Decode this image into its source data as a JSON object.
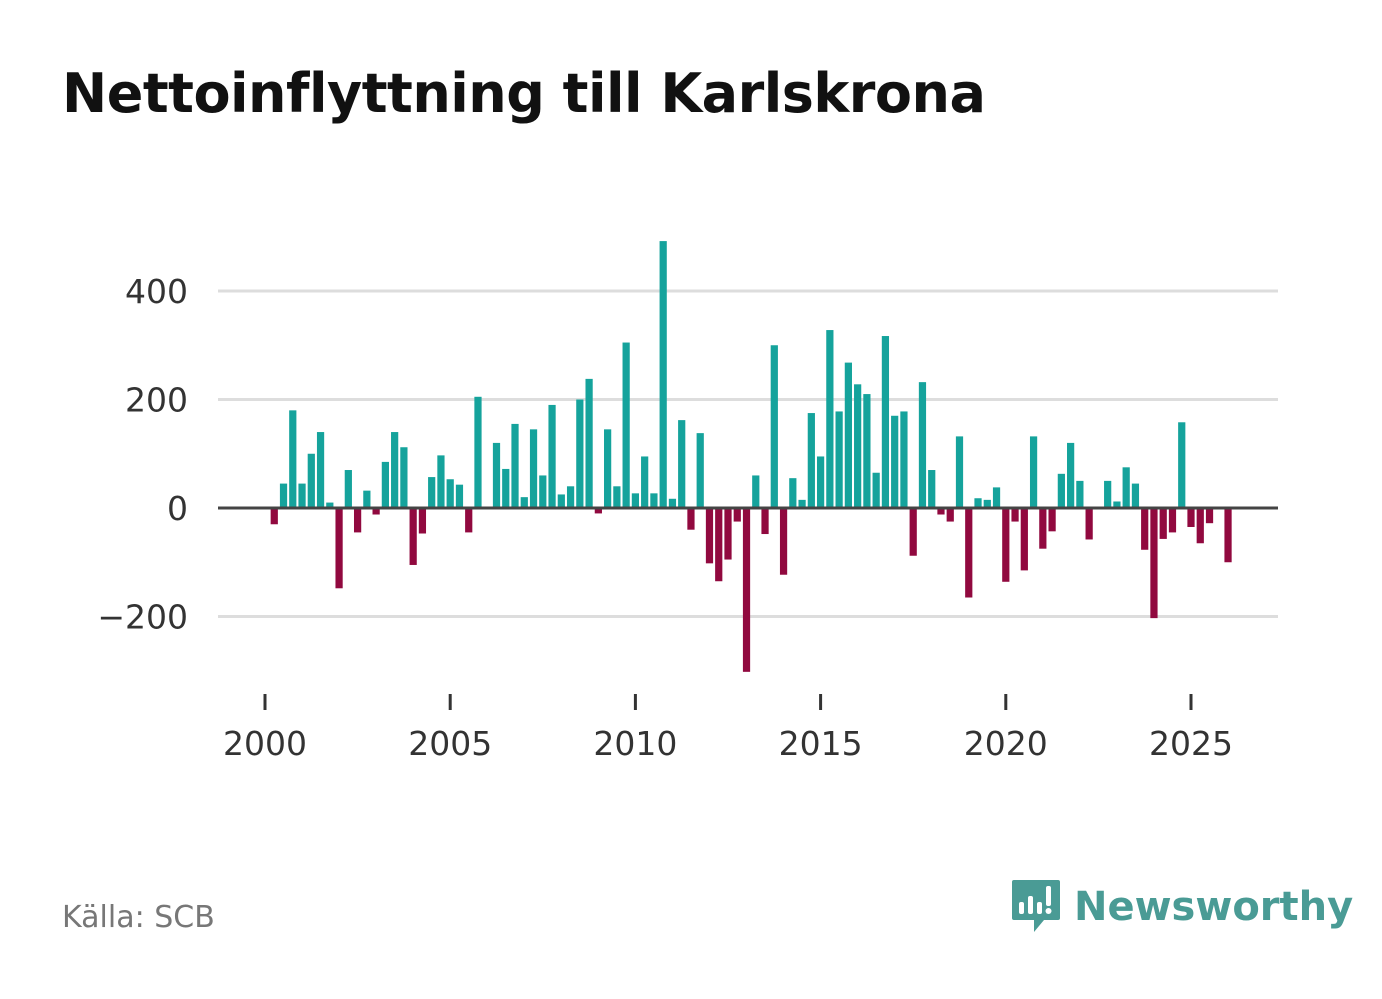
{
  "chart_data": {
    "type": "bar",
    "title": "Nettoinflyttning till Karlskrona",
    "xlabel": "",
    "ylabel": "",
    "ylim": [
      -330,
      520
    ],
    "xlim": [
      1999.5,
      2027.5
    ],
    "yticks": [
      -200,
      0,
      200,
      400
    ],
    "ytick_labels": [
      "−200",
      "0",
      "200",
      "400"
    ],
    "xticks": [
      2000,
      2005,
      2010,
      2015,
      2020,
      2025
    ],
    "xtick_labels": [
      "2000",
      "2005",
      "2010",
      "2015",
      "2020",
      "2025"
    ],
    "colors": {
      "positive": "#15a39c",
      "negative": "#91093f",
      "grid": "#dddddd",
      "zero": "#444444"
    },
    "start": 2000,
    "step": 0.25,
    "values": [
      0,
      -30,
      45,
      180,
      45,
      100,
      140,
      10,
      -148,
      70,
      -45,
      32,
      -12,
      85,
      140,
      112,
      -105,
      -47,
      57,
      97,
      53,
      43,
      -45,
      205,
      0,
      120,
      72,
      155,
      20,
      145,
      60,
      190,
      25,
      40,
      200,
      238,
      -10,
      145,
      40,
      305,
      27,
      95,
      27,
      492,
      17,
      162,
      -40,
      138,
      -102,
      -135,
      -95,
      -25,
      -302,
      60,
      -48,
      300,
      -123,
      55,
      15,
      175,
      95,
      328,
      178,
      268,
      228,
      210,
      65,
      317,
      170,
      178,
      -88,
      232,
      70,
      -12,
      -25,
      132,
      -165,
      18,
      15,
      38,
      -136,
      -25,
      -115,
      132,
      -75,
      -43,
      63,
      120,
      50,
      -58,
      0,
      50,
      12,
      75,
      45,
      -77,
      -203,
      -57,
      -45,
      158,
      -35,
      -65,
      -28,
      0,
      -100
    ]
  },
  "source": "Källa: SCB",
  "brand": {
    "name": "Newsworthy",
    "icon": "newsworthy-logo-icon"
  }
}
